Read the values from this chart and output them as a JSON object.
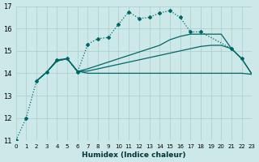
{
  "xlabel": "Humidex (Indice chaleur)",
  "xlim": [
    0,
    23
  ],
  "ylim": [
    11,
    17
  ],
  "yticks": [
    11,
    12,
    13,
    14,
    15,
    16,
    17
  ],
  "xticks": [
    0,
    1,
    2,
    3,
    4,
    5,
    6,
    7,
    8,
    9,
    10,
    11,
    12,
    13,
    14,
    15,
    16,
    17,
    18,
    19,
    20,
    21,
    22,
    23
  ],
  "background_color": "#cce8e8",
  "grid_color": "#aacccc",
  "line_color": "#006666",
  "line1_x": [
    0,
    1,
    2,
    3,
    4,
    5,
    6,
    7,
    8,
    9,
    10,
    11,
    12,
    13,
    14,
    15,
    16,
    17,
    18,
    21,
    22
  ],
  "line1_y": [
    11.0,
    12.0,
    13.65,
    14.05,
    14.6,
    14.65,
    14.05,
    15.3,
    15.55,
    15.6,
    16.2,
    16.75,
    16.45,
    16.5,
    16.7,
    16.8,
    16.5,
    15.85,
    15.85,
    15.1,
    14.65
  ],
  "line2_x": [
    2,
    3,
    4,
    5,
    6,
    7,
    8,
    9,
    10,
    11,
    12,
    13,
    14,
    15,
    16,
    17,
    18,
    19,
    20,
    21,
    22,
    23
  ],
  "line2_y": [
    13.65,
    14.05,
    14.6,
    14.65,
    14.1,
    14.0,
    14.0,
    14.0,
    14.0,
    14.0,
    14.0,
    14.0,
    14.0,
    14.0,
    14.0,
    14.0,
    14.0,
    14.0,
    14.0,
    14.0,
    14.0,
    13.95
  ],
  "line3_x": [
    2,
    3,
    4,
    5,
    6,
    7,
    8,
    9,
    10,
    11,
    12,
    13,
    14,
    15,
    16,
    17,
    18,
    19,
    20,
    21,
    22,
    23
  ],
  "line3_y": [
    13.65,
    14.05,
    14.55,
    14.65,
    14.08,
    14.1,
    14.2,
    14.3,
    14.4,
    14.5,
    14.6,
    14.7,
    14.8,
    14.9,
    15.0,
    15.1,
    15.2,
    15.25,
    15.25,
    15.1,
    14.65,
    13.95
  ],
  "line4_x": [
    2,
    3,
    4,
    5,
    6,
    7,
    8,
    9,
    10,
    11,
    12,
    13,
    14,
    15,
    16,
    17,
    18,
    19,
    20,
    21,
    22,
    23
  ],
  "line4_y": [
    13.65,
    14.05,
    14.55,
    14.65,
    14.08,
    14.2,
    14.35,
    14.5,
    14.65,
    14.8,
    14.95,
    15.1,
    15.25,
    15.5,
    15.65,
    15.75,
    15.75,
    15.75,
    15.75,
    15.1,
    14.65,
    13.95
  ]
}
